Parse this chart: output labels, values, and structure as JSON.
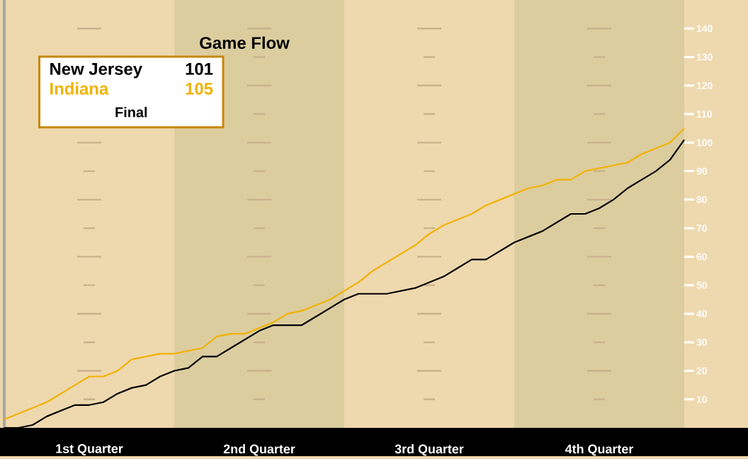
{
  "chart_data": {
    "type": "line",
    "title": "Game Flow",
    "categories": [
      null,
      null,
      null,
      null,
      null,
      null,
      "1st Quarter",
      null,
      null,
      null,
      null,
      null,
      null,
      null,
      null,
      null,
      null,
      null,
      "2nd Quarter",
      null,
      null,
      null,
      null,
      null,
      null,
      null,
      null,
      null,
      null,
      null,
      "3rd Quarter",
      null,
      null,
      null,
      null,
      null,
      null,
      null,
      null,
      null,
      null,
      null,
      "4th Quarter",
      null,
      null,
      null,
      null,
      null,
      null
    ],
    "ylim": [
      0,
      150
    ],
    "yticks": [
      10,
      20,
      30,
      40,
      50,
      60,
      70,
      80,
      90,
      100,
      110,
      120,
      130,
      140
    ],
    "legend": "top left",
    "grid": "y",
    "marker": "none",
    "line_style": "solid",
    "annotations": [
      "101",
      "105",
      "Final"
    ],
    "series": [
      {
        "name": "New Jersey",
        "color": "#000000",
        "values": [
          0,
          0,
          1,
          4,
          6,
          8,
          8,
          9,
          12,
          14,
          15,
          18,
          20,
          21,
          25,
          25,
          28,
          31,
          34,
          36,
          36,
          36,
          39,
          42,
          45,
          47,
          47,
          47,
          48,
          49,
          51,
          53,
          56,
          59,
          59,
          62,
          65,
          67,
          69,
          72,
          75,
          75,
          77,
          80,
          84,
          87,
          90,
          94,
          101
        ]
      },
      {
        "name": "Indiana",
        "color": "#f2b200",
        "values": [
          3,
          5,
          7,
          9,
          12,
          15,
          18,
          18,
          20,
          24,
          25,
          26,
          26,
          27,
          28,
          32,
          33,
          33,
          35,
          37,
          40,
          41,
          43,
          45,
          48,
          51,
          55,
          58,
          61,
          64,
          68,
          71,
          73,
          75,
          78,
          80,
          82,
          84,
          85,
          87,
          87,
          90,
          91,
          92,
          93,
          96,
          98,
          100,
          105
        ]
      }
    ]
  }
}
